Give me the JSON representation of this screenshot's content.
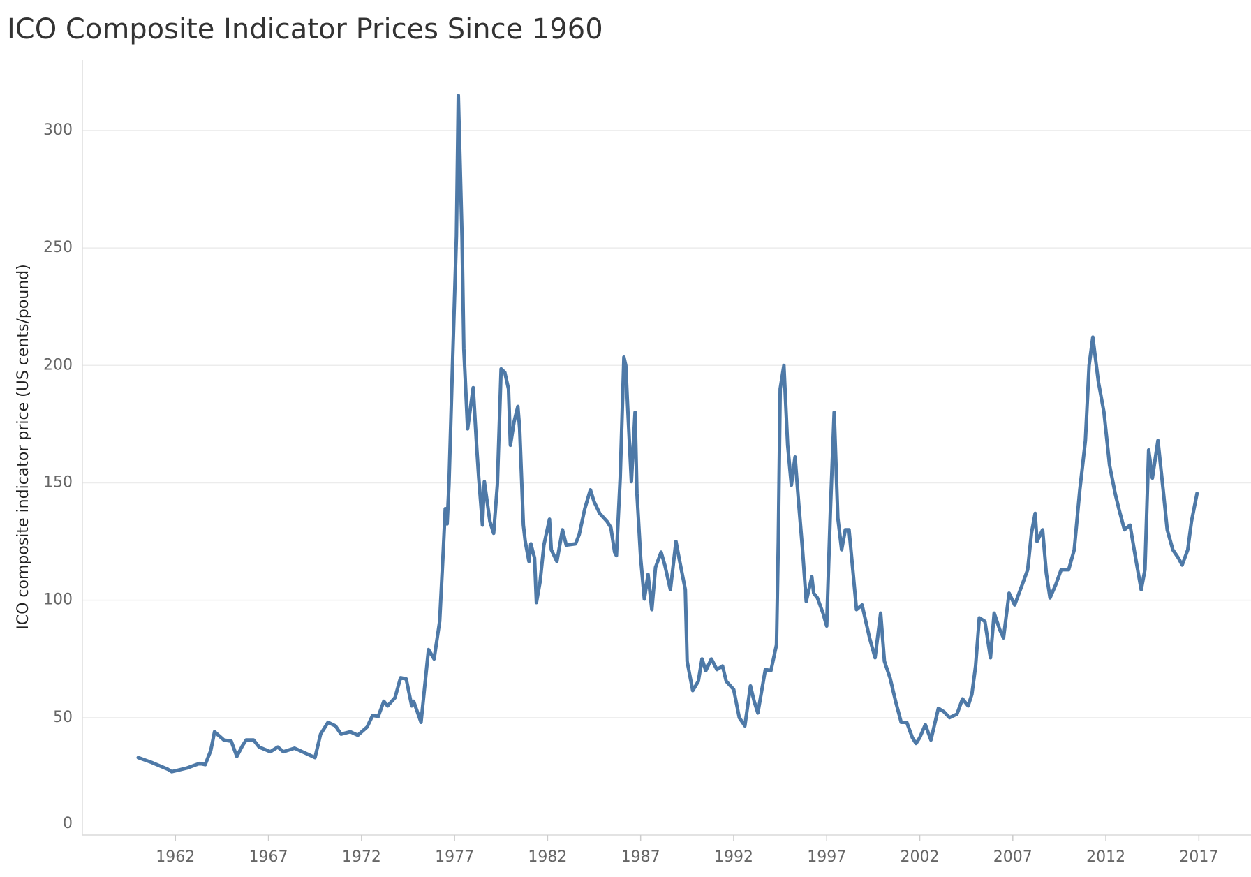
{
  "chart_data": {
    "type": "line",
    "title": "ICO Composite Indicator Prices Since 1960",
    "y_label": "ICO composite indicator price (US cents/pound)",
    "xlim": [
      1957,
      2019.8
    ],
    "xticks": [
      1962,
      1967,
      1972,
      1977,
      1982,
      1987,
      1992,
      1997,
      2002,
      2007,
      2012,
      2017
    ],
    "ylim": [
      0,
      330
    ],
    "yticks": [
      0,
      50,
      100,
      150,
      200,
      250,
      300
    ],
    "grid": true,
    "x": [
      1960.0,
      1960.7,
      1961.6,
      1961.8,
      1962.6,
      1963.3,
      1963.6,
      1963.9,
      1964.1,
      1964.6,
      1965.0,
      1965.3,
      1965.6,
      1965.8,
      1966.2,
      1966.5,
      1967.1,
      1967.5,
      1967.8,
      1968.4,
      1969.1,
      1969.5,
      1969.8,
      1970.2,
      1970.6,
      1970.9,
      1971.4,
      1971.8,
      1972.3,
      1972.6,
      1972.9,
      1973.2,
      1973.4,
      1973.8,
      1974.1,
      1974.4,
      1974.7,
      1974.8,
      1975.2,
      1975.6,
      1975.9,
      1976.2,
      1976.4,
      1976.5,
      1976.6,
      1976.7,
      1976.9,
      1977.1,
      1977.2,
      1977.4,
      1977.5,
      1977.7,
      1978.0,
      1978.2,
      1978.3,
      1978.5,
      1978.6,
      1978.9,
      1979.1,
      1979.3,
      1979.5,
      1979.7,
      1979.9,
      1980.0,
      1980.2,
      1980.4,
      1980.5,
      1980.7,
      1980.8,
      1981.0,
      1981.1,
      1981.3,
      1981.4,
      1981.6,
      1981.8,
      1982.1,
      1982.2,
      1982.5,
      1982.8,
      1983.0,
      1983.5,
      1983.7,
      1984.0,
      1984.3,
      1984.5,
      1984.8,
      1985.2,
      1985.4,
      1985.6,
      1985.7,
      1985.9,
      1986.1,
      1986.2,
      1986.3,
      1986.5,
      1986.7,
      1986.8,
      1987.0,
      1987.2,
      1987.4,
      1987.6,
      1987.8,
      1988.1,
      1988.3,
      1988.6,
      1988.9,
      1989.1,
      1989.4,
      1989.5,
      1989.8,
      1990.1,
      1990.3,
      1990.5,
      1990.8,
      1991.1,
      1991.4,
      1991.6,
      1992.0,
      1992.3,
      1992.6,
      1992.9,
      1993.1,
      1993.3,
      1993.7,
      1994.0,
      1994.3,
      1994.4,
      1994.5,
      1994.7,
      1994.9,
      1995.1,
      1995.3,
      1995.5,
      1995.7,
      1995.9,
      1996.2,
      1996.3,
      1996.5,
      1996.8,
      1997.0,
      1997.2,
      1997.4,
      1997.6,
      1997.8,
      1998.0,
      1998.2,
      1998.4,
      1998.6,
      1998.9,
      1999.3,
      1999.6,
      1999.9,
      2000.1,
      2000.4,
      2000.7,
      2001.0,
      2001.3,
      2001.6,
      2001.8,
      2002.0,
      2002.3,
      2002.6,
      2003.0,
      2003.3,
      2003.6,
      2004.0,
      2004.3,
      2004.6,
      2004.8,
      2005.0,
      2005.2,
      2005.5,
      2005.8,
      2006.0,
      2006.3,
      2006.5,
      2006.8,
      2007.1,
      2007.5,
      2007.8,
      2008.0,
      2008.2,
      2008.3,
      2008.6,
      2008.8,
      2009.0,
      2009.3,
      2009.6,
      2010.0,
      2010.3,
      2010.6,
      2010.9,
      2011.1,
      2011.3,
      2011.6,
      2011.9,
      2012.2,
      2012.5,
      2012.7,
      2013.0,
      2013.3,
      2013.6,
      2013.9,
      2014.1,
      2014.3,
      2014.5,
      2014.8,
      2015.1,
      2015.3,
      2015.6,
      2015.9,
      2016.1,
      2016.4,
      2016.6,
      2016.9
    ],
    "series": [
      {
        "name": "ICO composite indicator price",
        "color": "#4e79a7",
        "values": [
          33,
          31,
          28,
          27,
          28.5,
          30.5,
          30,
          36,
          44,
          40.5,
          40,
          33.5,
          38,
          40.5,
          40.5,
          37.5,
          35.5,
          37.5,
          35.5,
          37,
          34.5,
          33,
          43,
          48,
          46.5,
          43,
          44,
          42.5,
          46,
          51,
          50.5,
          57,
          55,
          58.5,
          67,
          66.5,
          55,
          57,
          48,
          79,
          75,
          91,
          122,
          139,
          132.5,
          149,
          203.5,
          255,
          315,
          255,
          207,
          173,
          190.5,
          164,
          152,
          132,
          150.5,
          133.5,
          128.5,
          149,
          198.5,
          197,
          190,
          166,
          176,
          182.5,
          173,
          132,
          125,
          116.5,
          124,
          118,
          99,
          108,
          123.5,
          134.5,
          121.5,
          116.5,
          130,
          123.5,
          124,
          128,
          139,
          147,
          142,
          137,
          133.5,
          131,
          120.5,
          119,
          152,
          203.5,
          200,
          183,
          150.5,
          180,
          145.5,
          118,
          100.5,
          111,
          96,
          114,
          120.5,
          115,
          104.5,
          125,
          116.5,
          104.5,
          74,
          61.5,
          65.5,
          75,
          70,
          75,
          70.5,
          72,
          65.5,
          62,
          50,
          46.5,
          63.5,
          57,
          52,
          70.5,
          70,
          81,
          125,
          190,
          200,
          166,
          149,
          161,
          140.5,
          121.5,
          99.5,
          110,
          103,
          101,
          94.5,
          89,
          139,
          180,
          135,
          121.5,
          130,
          130,
          113,
          96,
          98,
          84,
          75.5,
          94.5,
          74,
          67,
          57,
          48,
          48,
          41.5,
          39,
          41.5,
          47,
          40.5,
          54,
          52.5,
          50,
          51.5,
          58,
          55,
          60,
          72,
          92.5,
          91,
          75.5,
          94.5,
          87.5,
          84,
          103,
          98,
          106.5,
          113,
          128.5,
          137,
          125,
          130,
          111.5,
          101,
          106.5,
          113,
          113,
          121.5,
          147,
          168,
          200,
          212,
          193,
          180,
          157.5,
          145.5,
          139,
          130,
          132,
          118,
          104.5,
          113,
          164,
          152,
          168,
          145.5,
          130,
          121.5,
          118,
          115,
          121.5,
          133.5,
          145.5
        ]
      }
    ]
  }
}
